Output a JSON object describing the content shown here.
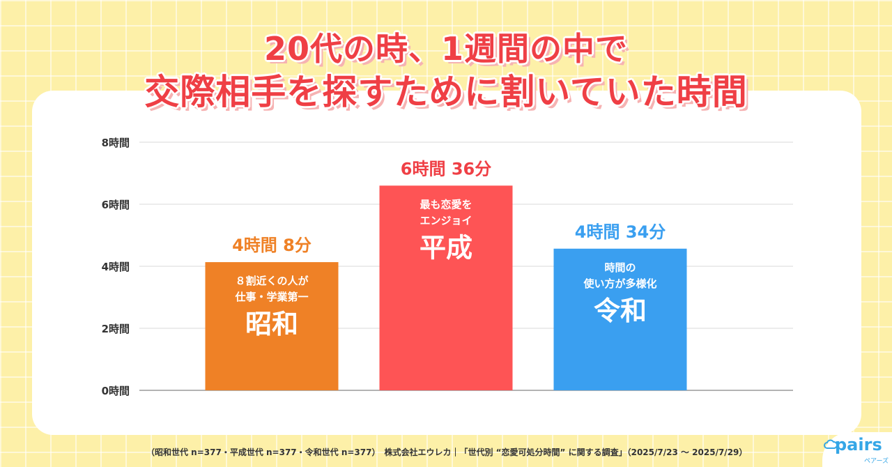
{
  "chart_data": {
    "type": "bar",
    "title_line1": "20代の時、1週間の中で",
    "title_line2": "交際相手を探すために割いていた時間",
    "ylim": [
      0,
      8
    ],
    "yticks": [
      {
        "value": 0,
        "label": "0時間"
      },
      {
        "value": 2,
        "label": "2時間"
      },
      {
        "value": 4,
        "label": "4時間"
      },
      {
        "value": 6,
        "label": "6時間"
      },
      {
        "value": 8,
        "label": "8時間"
      }
    ],
    "grid": true,
    "bars": [
      {
        "category": "昭和",
        "value": 4.133,
        "value_label": "4時間 8分",
        "caption_line1": "８割近くの人が",
        "caption_line2": "仕事・学業第一",
        "color": "#ef8126",
        "label_color": "#ef8126"
      },
      {
        "category": "平成",
        "value": 6.6,
        "value_label": "6時間 36分",
        "caption_line1": "最も恋愛を",
        "caption_line2": "エンジョイ",
        "color": "#fe5455",
        "label_color": "#ef3f45"
      },
      {
        "category": "令和",
        "value": 4.567,
        "value_label": "4時間 34分",
        "caption_line1": "時間の",
        "caption_line2": "使い方が多様化",
        "color": "#3a9ff0",
        "label_color": "#3a9ff0"
      }
    ]
  },
  "footer": "（昭和世代 n=377・平成世代 n=377・令和世代 n=377）　株式会社エウレカ｜「世代別 “恋愛可処分時間” に関する調査」（2025/7/23 ～ 2025/7/29）",
  "logo": {
    "text": "pairs",
    "sub": "ペアーズ"
  }
}
